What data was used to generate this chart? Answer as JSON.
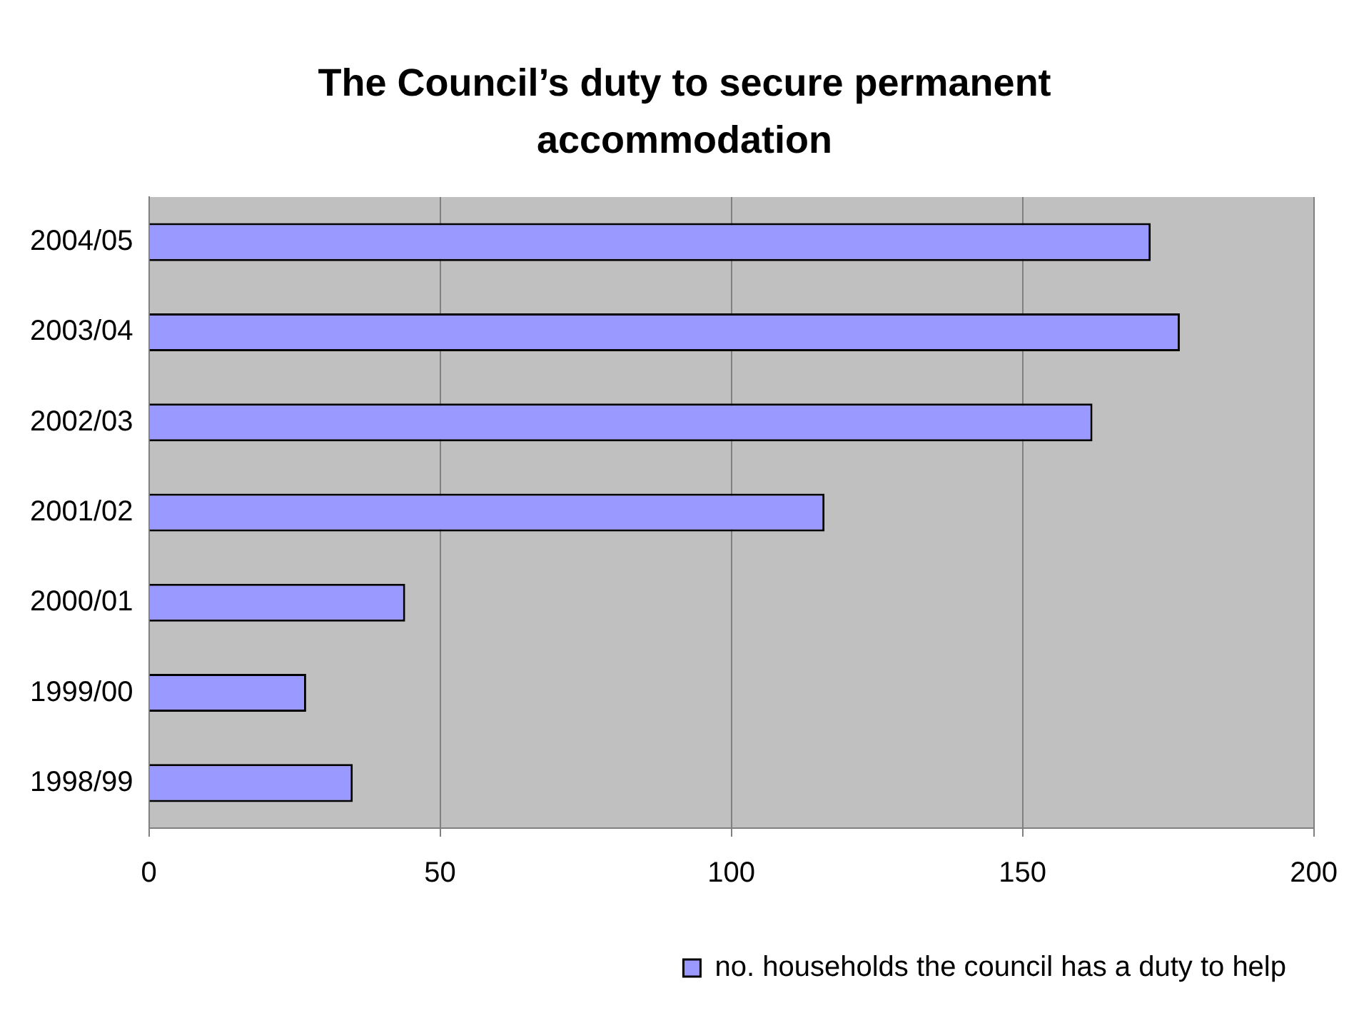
{
  "chart_data": {
    "type": "bar",
    "orientation": "horizontal",
    "title": "The Council’s duty to secure permanent accommodation",
    "categories": [
      "2004/05",
      "2003/04",
      "2002/03",
      "2001/02",
      "2000/01",
      "1999/00",
      "1998/99"
    ],
    "series": [
      {
        "name": "no. households the council has a duty to help",
        "color": "#9999ff",
        "values": [
          172,
          177,
          162,
          116,
          44,
          27,
          35
        ]
      }
    ],
    "xlim": [
      0,
      200
    ],
    "xticks": [
      0,
      50,
      100,
      150,
      200
    ],
    "grid": "x",
    "legend": "bottom"
  }
}
